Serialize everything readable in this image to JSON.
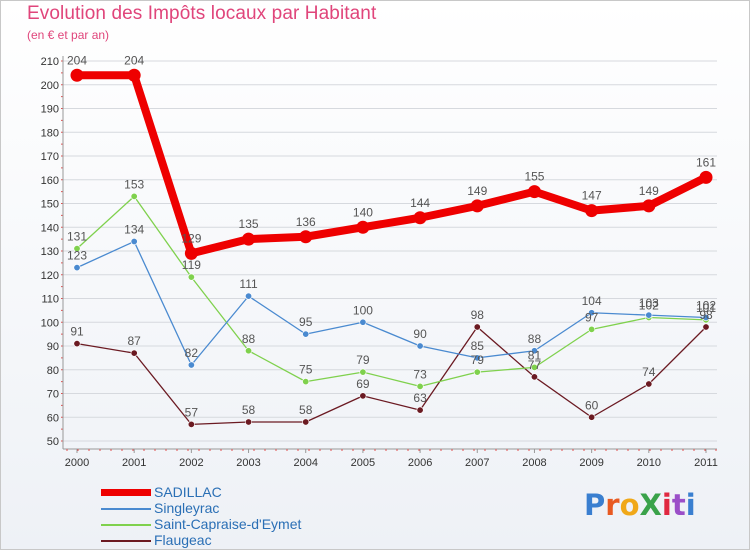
{
  "header": {
    "title": "Evolution des Impôts locaux par Habitant",
    "subtitle": "(en € et par an)"
  },
  "chart_data": {
    "type": "line",
    "title": "Evolution des Impôts locaux par Habitant",
    "subtitle": "(en € et par an)",
    "xlabel": "",
    "ylabel": "",
    "x": [
      "2000",
      "2001",
      "2002",
      "2003",
      "2004",
      "2005",
      "2006",
      "2007",
      "2008",
      "2009",
      "2010",
      "2011"
    ],
    "ylim": [
      50,
      210
    ],
    "yticks": [
      50,
      60,
      70,
      80,
      90,
      100,
      110,
      120,
      130,
      140,
      150,
      160,
      170,
      180,
      190,
      200,
      210
    ],
    "grid": "horizontal",
    "series": [
      {
        "name": "Flaugeac",
        "color": "#6b1a22",
        "values": [
          91,
          87,
          57,
          58,
          58,
          69,
          63,
          98,
          77,
          60,
          74,
          98
        ]
      },
      {
        "name": "Saint-Capraise-d'Eymet",
        "color": "#7fd14d",
        "values": [
          131,
          153,
          119,
          88,
          75,
          79,
          73,
          79,
          81,
          97,
          102,
          101
        ]
      },
      {
        "name": "Singleyrac",
        "color": "#4a8ad0",
        "values": [
          123,
          134,
          82,
          111,
          95,
          100,
          90,
          85,
          88,
          104,
          103,
          102
        ]
      },
      {
        "name": "SADILLAC",
        "color": "#ee0000",
        "values": [
          204,
          204,
          129,
          135,
          136,
          140,
          144,
          149,
          155,
          147,
          149,
          161
        ]
      }
    ],
    "legend": [
      "SADILLAC",
      "Singleyrac",
      "Saint-Capraise-d'Eymet",
      "Flaugeac"
    ],
    "legend_position": "bottom-left"
  },
  "legend": {
    "items": [
      {
        "label": "SADILLAC",
        "color": "#ee0000"
      },
      {
        "label": "Singleyrac",
        "color": "#4a8ad0"
      },
      {
        "label": "Saint-Capraise-d'Eymet",
        "color": "#7fd14d"
      },
      {
        "label": "Flaugeac",
        "color": "#6b1a22"
      }
    ]
  },
  "logo": {
    "text": "ProXiti",
    "colors": [
      "#3a7fd0",
      "#e85a22",
      "#f0a818",
      "#3aa24a",
      "#e02840",
      "#9b4fc8",
      "#3a7fd0"
    ]
  }
}
